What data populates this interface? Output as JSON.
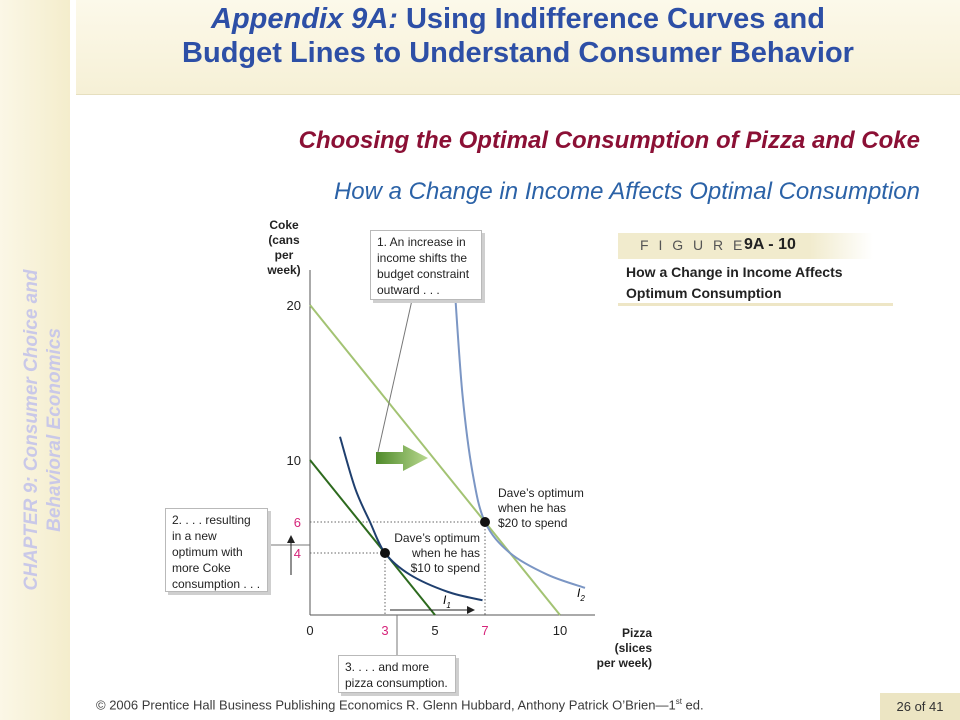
{
  "slide": {
    "title_italic": "Appendix 9A:",
    "title_rest": " Using Indifference Curves and",
    "title_line2": "Budget Lines to Understand Consumer Behavior",
    "subtitle1": "Choosing the Optimal Consumption of Pizza and Coke",
    "subtitle2": "How a Change in Income Affects Optimal Consumption",
    "side_line1": "CHAPTER 9: Consumer Choice and",
    "side_line2": "Behavioral Economics",
    "footer": "© 2006 Prentice Hall Business Publishing   Economics  R. Glenn Hubbard, Anthony Patrick O’Brien—1",
    "footer_sup": "st",
    "footer_end": " ed.",
    "page": "26 of 41",
    "figure_word": "F I G U R E",
    "figure_number": "9A - 10",
    "figure_caption_1": "How a Change in Income Affects",
    "figure_caption_2": "Optimum Consumption"
  },
  "chart_data": {
    "type": "line",
    "xlabel": [
      "Pizza",
      "(slices",
      "per week)"
    ],
    "ylabel": [
      "Coke",
      "(cans",
      "per",
      "week)"
    ],
    "xlim": [
      0,
      11
    ],
    "ylim": [
      0,
      22
    ],
    "x_ticks": [
      "0",
      "3",
      "5",
      "7",
      "10"
    ],
    "y_ticks": [
      "20",
      "10",
      "6",
      "4"
    ],
    "highlight_ticks_color": "#d6247a",
    "series": [
      {
        "name": "",
        "kind": "budget",
        "color": "#2d6a1e",
        "points": [
          [
            0,
            10
          ],
          [
            5,
            0
          ]
        ]
      },
      {
        "name": "",
        "kind": "budget",
        "color": "#a3c373",
        "points": [
          [
            0,
            20
          ],
          [
            10,
            0
          ]
        ]
      },
      {
        "name": "I1",
        "kind": "indifference",
        "color": "#1f3f6e",
        "points": [
          [
            1.2,
            11.5
          ],
          [
            1.8,
            8.2
          ],
          [
            2.4,
            6.0
          ],
          [
            3,
            4
          ],
          [
            4,
            2.6
          ],
          [
            5.5,
            1.5
          ],
          [
            6.9,
            0.95
          ]
        ]
      },
      {
        "name": "I2",
        "kind": "indifference",
        "color": "#7b96c4",
        "points": [
          [
            5.8,
            20.8
          ],
          [
            6.1,
            14.2
          ],
          [
            6.5,
            9.2
          ],
          [
            7,
            6
          ],
          [
            8,
            4
          ],
          [
            9.5,
            2.6
          ],
          [
            11,
            1.75
          ]
        ]
      }
    ],
    "optima": [
      {
        "x": 3,
        "y": 4,
        "label": [
          "Dave’s optimum",
          "when he has",
          "$10 to spend"
        ]
      },
      {
        "x": 7,
        "y": 6,
        "label": [
          "Dave’s optimum",
          "when he has",
          "$20 to spend"
        ]
      }
    ],
    "curve_labels": {
      "i1": "I",
      "i1_sub": "1",
      "i2": "I",
      "i2_sub": "2"
    },
    "annotations": [
      [
        "1. An increase in",
        "income shifts the",
        "budget constraint",
        "outward . . ."
      ],
      [
        "2. . . . resulting",
        "in a new",
        "optimum with",
        "more Coke",
        "consumption . . ."
      ],
      [
        "3. . . . and more",
        "pizza consumption."
      ]
    ]
  }
}
